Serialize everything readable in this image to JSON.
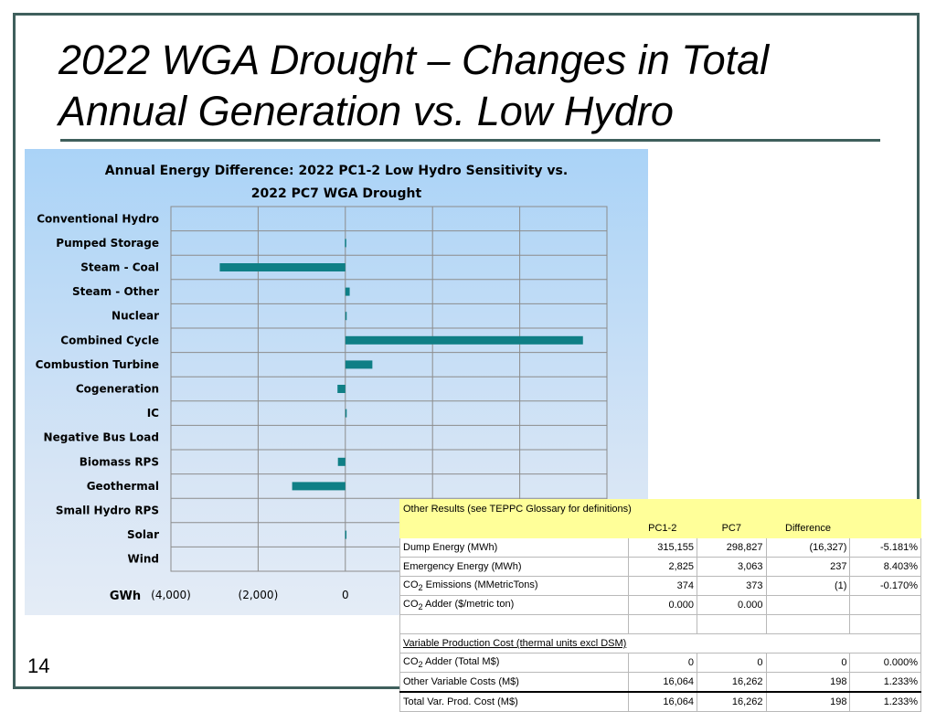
{
  "slide": {
    "title_line1": "2022 WGA Drought – Changes in Total",
    "title_line2": "Annual Generation vs. Low Hydro",
    "page_number": "14"
  },
  "chart_data": {
    "type": "bar",
    "orientation": "horizontal",
    "title": "Annual Energy Difference: 2022 PC1-2 Low Hydro Sensitivity vs. 2022 PC7 WGA Drought",
    "title_lines": [
      "Annual Energy Difference: 2022 PC1-2 Low Hydro Sensitivity vs.",
      "2022 PC7 WGA Drought"
    ],
    "xlabel": "GWh",
    "xlim": [
      -4000,
      6000
    ],
    "xticks": [
      -4000,
      -2000,
      0
    ],
    "xtick_labels": [
      "(4,000)",
      "(2,000)",
      "0"
    ],
    "grid": true,
    "bar_color": "#0f7f86",
    "categories": [
      "Conventional Hydro",
      "Pumped Storage",
      "Steam - Coal",
      "Steam - Other",
      "Nuclear",
      "Combined Cycle",
      "Combustion Turbine",
      "Cogeneration",
      "IC",
      "Negative Bus Load",
      "Biomass RPS",
      "Geothermal",
      "Small Hydro RPS",
      "Solar",
      "Wind"
    ],
    "values": [
      0,
      -10,
      -2880,
      100,
      30,
      5450,
      620,
      -180,
      30,
      0,
      -170,
      -1220,
      0,
      -5,
      0
    ]
  },
  "results_table": {
    "title": "Other Results (see TEPPC Glossary for definitions)",
    "columns": [
      "PC1-2",
      "PC7",
      "Difference"
    ],
    "rows": [
      {
        "label": "Dump Energy (MWh)",
        "pc12": "315,155",
        "pc7": "298,827",
        "diff": "(16,327)",
        "pct": "-5.181%"
      },
      {
        "label": "Emergency Energy (MWh)",
        "pc12": "2,825",
        "pc7": "3,063",
        "diff": "237",
        "pct": "8.403%"
      },
      {
        "label_pre": "CO",
        "label_sub": "2",
        "label_post": " Emissions (MMetricTons)",
        "pc12": "374",
        "pc7": "373",
        "diff": "(1)",
        "pct": "-0.170%"
      },
      {
        "label_pre": "CO",
        "label_sub": "2",
        "label_post": " Adder ($/metric ton)",
        "pc12": "0.000",
        "pc7": "0.000",
        "diff": "",
        "pct": ""
      }
    ],
    "section2_title": "Variable Production Cost (thermal units excl DSM)",
    "rows2": [
      {
        "label_pre": " CO",
        "label_sub": "2",
        "label_post": " Adder (Total M$)",
        "pc12": "0",
        "pc7": "0",
        "diff": "0",
        "pct": "0.000%"
      },
      {
        "label": " Other Variable Costs (M$)",
        "pc12": "16,064",
        "pc7": "16,262",
        "diff": "198",
        "pct": "1.233%"
      }
    ],
    "total": {
      "label": "Total Var. Prod. Cost (M$)",
      "pc12": "16,064",
      "pc7": "16,262",
      "diff": "198",
      "pct": "1.233%"
    }
  }
}
